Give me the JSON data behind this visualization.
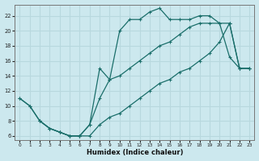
{
  "xlabel": "Humidex (Indice chaleur)",
  "bg_color": "#cce8ee",
  "grid_color": "#b8d8de",
  "line_color": "#1a6e6a",
  "xlim": [
    -0.5,
    23.5
  ],
  "ylim": [
    5.5,
    23.5
  ],
  "xticks": [
    0,
    1,
    2,
    3,
    4,
    5,
    6,
    7,
    8,
    9,
    10,
    11,
    12,
    13,
    14,
    15,
    16,
    17,
    18,
    19,
    20,
    21,
    22,
    23
  ],
  "yticks": [
    6,
    8,
    10,
    12,
    14,
    16,
    18,
    20,
    22
  ],
  "line1_x": [
    0,
    1,
    2,
    3,
    4,
    5,
    6,
    7,
    8,
    9,
    10,
    11,
    12,
    13,
    14,
    15,
    16,
    17,
    18,
    19,
    20,
    21,
    22,
    23
  ],
  "line1_y": [
    11,
    10,
    8,
    7,
    6.5,
    6,
    6,
    7.5,
    15,
    13.5,
    20,
    21.5,
    21.5,
    22.5,
    23,
    21.5,
    21.5,
    21.5,
    22,
    22,
    21,
    16.5,
    15,
    15
  ],
  "line2_x": [
    2,
    3,
    4,
    5,
    6,
    7,
    8,
    9,
    10,
    11,
    12,
    13,
    14,
    15,
    16,
    17,
    18,
    19,
    20,
    21,
    22,
    23
  ],
  "line2_y": [
    8,
    7,
    6.5,
    6,
    6,
    7.5,
    11,
    13.5,
    14,
    15,
    16,
    17,
    18,
    18.5,
    19.5,
    20.5,
    21,
    21,
    21,
    21,
    15,
    15
  ],
  "line3_x": [
    0,
    1,
    2,
    3,
    4,
    5,
    6,
    7,
    8,
    9,
    10,
    11,
    12,
    13,
    14,
    15,
    16,
    17,
    18,
    19,
    20,
    21,
    22,
    23
  ],
  "line3_y": [
    11,
    10,
    8,
    7,
    6.5,
    6,
    6,
    6,
    7.5,
    8.5,
    9,
    10,
    11,
    12,
    13,
    13.5,
    14.5,
    15,
    16,
    17,
    18.5,
    21,
    15,
    15
  ]
}
